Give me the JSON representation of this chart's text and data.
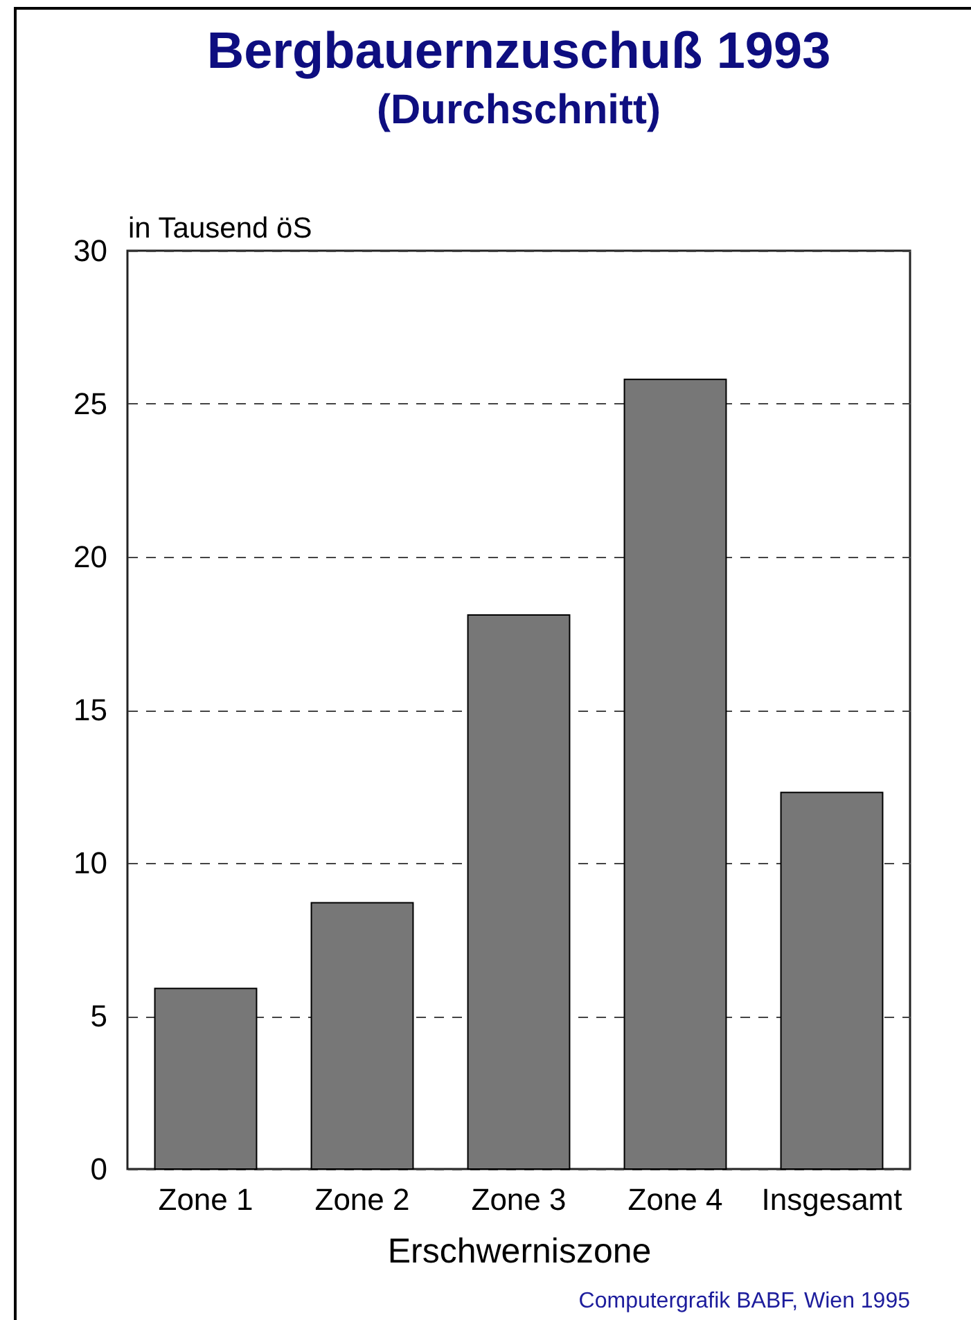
{
  "chart_data": {
    "type": "bar",
    "title": "Bergbauernzuschuß 1993",
    "subtitle": "(Durchschnitt)",
    "ylabel": "in Tausend öS",
    "xlabel": "Erschwerniszone",
    "annotations": [
      "Computergrafik BABF, Wien 1995"
    ],
    "categories": [
      "Zone 1",
      "Zone 2",
      "Zone 3",
      "Zone 4",
      "Insgesamt"
    ],
    "values": [
      5.9,
      8.7,
      18.1,
      25.8,
      12.3
    ],
    "color": "#777777",
    "ylim": [
      0,
      30
    ],
    "yticks": [
      0,
      5,
      10,
      15,
      20,
      25,
      30
    ],
    "grid": "y"
  }
}
